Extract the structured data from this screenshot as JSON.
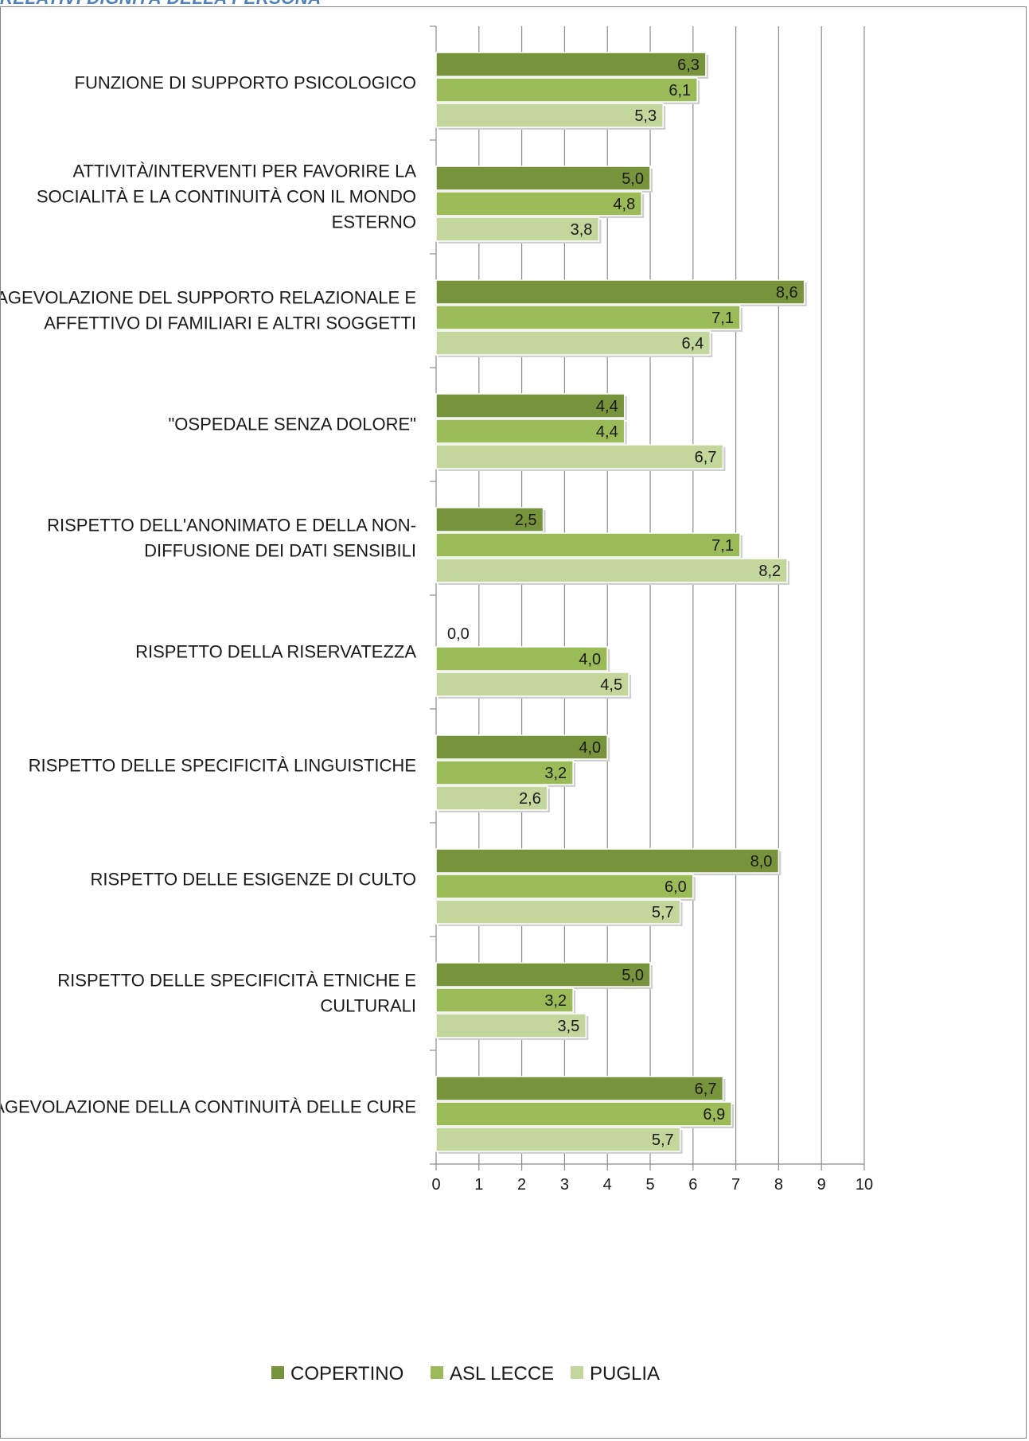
{
  "header": {
    "title": "RELATIVI DIGNITÀ DELLA PERSONA"
  },
  "colors": {
    "COPERTINO": "#77933c",
    "ASL LECCE": "#9bbb59",
    "PUGLIA": "#c3d69b"
  },
  "chart_data": {
    "type": "bar",
    "orientation": "horizontal",
    "categories": [
      "FUNZIONE DI SUPPORTO PSICOLOGICO",
      "ATTIVITÀ/INTERVENTI PER FAVORIRE LA SOCIALITÀ E LA CONTINUITÀ CON IL MONDO ESTERNO",
      "AGEVOLAZIONE DEL SUPPORTO RELAZIONALE E AFFETTIVO DI FAMILIARI E ALTRI SOGGETTI",
      "\"OSPEDALE SENZA DOLORE\"",
      "RISPETTO DELL'ANONIMATO E DELLA NON-DIFFUSIONE DEI DATI SENSIBILI",
      "RISPETTO DELLA RISERVATEZZA",
      "RISPETTO DELLE SPECIFICITÀ LINGUISTICHE",
      "RISPETTO DELLE ESIGENZE DI CULTO",
      "RISPETTO DELLE SPECIFICITÀ ETNICHE E CULTURALI",
      "AGEVOLAZIONE DELLA CONTINUITÀ DELLE CURE"
    ],
    "category_lines": [
      [
        "FUNZIONE DI SUPPORTO PSICOLOGICO"
      ],
      [
        "ATTIVITÀ/INTERVENTI PER FAVORIRE LA",
        "SOCIALITÀ E LA CONTINUITÀ CON IL MONDO",
        "ESTERNO"
      ],
      [
        "AGEVOLAZIONE DEL SUPPORTO RELAZIONALE E",
        "AFFETTIVO DI FAMILIARI E ALTRI SOGGETTI"
      ],
      [
        "\"OSPEDALE SENZA DOLORE\""
      ],
      [
        "RISPETTO DELL'ANONIMATO E DELLA NON-",
        "DIFFUSIONE DEI DATI SENSIBILI"
      ],
      [
        "RISPETTO DELLA RISERVATEZZA"
      ],
      [
        "RISPETTO DELLE SPECIFICITÀ LINGUISTICHE"
      ],
      [
        "RISPETTO DELLE ESIGENZE DI CULTO"
      ],
      [
        "RISPETTO DELLE SPECIFICITÀ ETNICHE E",
        "CULTURALI"
      ],
      [
        "AGEVOLAZIONE DELLA CONTINUITÀ DELLE CURE"
      ]
    ],
    "series": [
      {
        "name": "COPERTINO",
        "values": [
          6.3,
          5.0,
          8.6,
          4.4,
          2.5,
          0.0,
          4.0,
          8.0,
          5.0,
          6.7
        ],
        "labels": [
          "6,3",
          "5,0",
          "8,6",
          "4,4",
          "2,5",
          "0,0",
          "4,0",
          "8,0",
          "5,0",
          "6,7"
        ]
      },
      {
        "name": "ASL LECCE",
        "values": [
          6.1,
          4.8,
          7.1,
          4.4,
          7.1,
          4.0,
          3.2,
          6.0,
          3.2,
          6.9
        ],
        "labels": [
          "6,1",
          "4,8",
          "7,1",
          "4,4",
          "7,1",
          "4,0",
          "3,2",
          "6,0",
          "3,2",
          "6,9"
        ]
      },
      {
        "name": "PUGLIA",
        "values": [
          5.3,
          3.8,
          6.4,
          6.7,
          8.2,
          4.5,
          2.6,
          5.7,
          3.5,
          5.7
        ],
        "labels": [
          "5,3",
          "3,8",
          "6,4",
          "6,7",
          "8,2",
          "4,5",
          "2,6",
          "5,7",
          "3,5",
          "5,7"
        ]
      }
    ],
    "xlim": [
      0,
      10
    ],
    "xticks": [
      "0",
      "1",
      "2",
      "3",
      "4",
      "5",
      "6",
      "7",
      "8",
      "9",
      "10"
    ],
    "grid": true,
    "legend_position": "bottom",
    "title": "",
    "xlabel": "",
    "ylabel": ""
  }
}
